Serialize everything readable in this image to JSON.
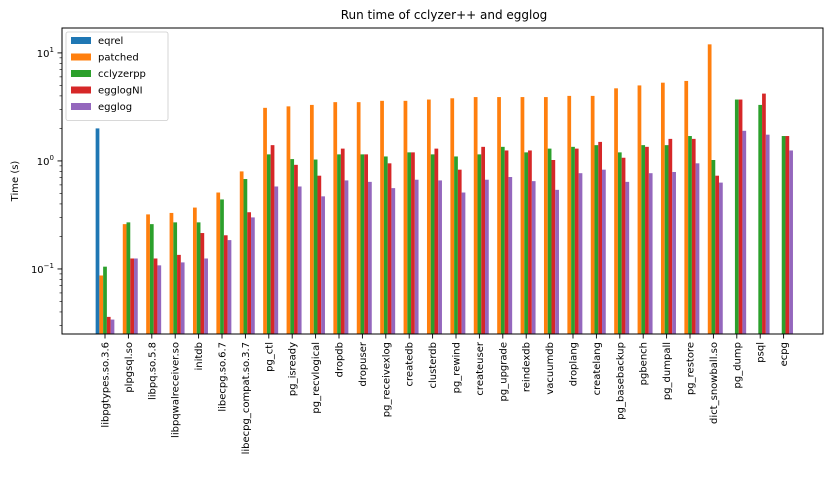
{
  "chart_data": {
    "type": "bar",
    "title": "Run time of cclyzer++ and egglog",
    "xlabel": "",
    "ylabel": "Time (s)",
    "yscale": "log",
    "ylim": [
      0.025,
      17
    ],
    "yticks": [
      {
        "value": 0.1,
        "base": "10",
        "exp": "−1"
      },
      {
        "value": 1,
        "base": "10",
        "exp": "0"
      },
      {
        "value": 10,
        "base": "10",
        "exp": "1"
      }
    ],
    "legend_position": "top-left",
    "categories": [
      "libpgtypes.so.3.6",
      "plpgsql.so",
      "libpq.so.5.8",
      "libpqwalreceiver.so",
      "initdb",
      "libecpg.so.6.7",
      "libecpg_compat.so.3.7",
      "pg_ctl",
      "pg_isready",
      "pg_recvlogical",
      "dropdb",
      "dropuser",
      "pg_receivexlog",
      "createdb",
      "clusterdb",
      "pg_rewind",
      "createuser",
      "pg_upgrade",
      "reindexdb",
      "vacuumdb",
      "droplang",
      "createlang",
      "pg_basebackup",
      "pgbench",
      "pg_dumpall",
      "pg_restore",
      "dict_snowball.so",
      "pg_dump",
      "psql",
      "ecpg"
    ],
    "series": [
      {
        "name": "eqrel",
        "color": "#1f77b4",
        "values": [
          2.0,
          null,
          null,
          null,
          null,
          null,
          null,
          null,
          null,
          null,
          null,
          null,
          null,
          null,
          null,
          null,
          null,
          null,
          null,
          null,
          null,
          null,
          null,
          null,
          null,
          null,
          null,
          null,
          null,
          null
        ]
      },
      {
        "name": "patched",
        "color": "#ff7f0e",
        "values": [
          0.087,
          0.26,
          0.32,
          0.33,
          0.37,
          0.51,
          0.8,
          3.1,
          3.2,
          3.3,
          3.5,
          3.5,
          3.6,
          3.6,
          3.7,
          3.8,
          3.9,
          3.9,
          3.9,
          3.9,
          4.0,
          4.0,
          4.7,
          5.0,
          5.3,
          5.5,
          12.0,
          null,
          null,
          null
        ]
      },
      {
        "name": "cclyzerpp",
        "color": "#2ca02c",
        "values": [
          0.105,
          0.27,
          0.26,
          0.27,
          0.27,
          0.44,
          0.68,
          1.15,
          1.04,
          1.03,
          1.15,
          1.15,
          1.1,
          1.2,
          1.15,
          1.1,
          1.15,
          1.35,
          1.2,
          1.3,
          1.35,
          1.4,
          1.2,
          1.4,
          1.4,
          1.7,
          1.02,
          3.7,
          3.3,
          1.7
        ]
      },
      {
        "name": "egglogNI",
        "color": "#d62728",
        "values": [
          0.036,
          0.125,
          0.125,
          0.135,
          0.215,
          0.205,
          0.335,
          1.4,
          0.92,
          0.73,
          1.3,
          1.15,
          0.95,
          1.2,
          1.3,
          0.83,
          1.35,
          1.25,
          1.25,
          1.02,
          1.3,
          1.5,
          1.07,
          1.35,
          1.6,
          1.6,
          0.73,
          3.7,
          4.2,
          1.7
        ]
      },
      {
        "name": "egglog",
        "color": "#9467bd",
        "values": [
          0.034,
          0.125,
          0.108,
          0.115,
          0.125,
          0.185,
          0.3,
          0.58,
          0.58,
          0.47,
          0.66,
          0.64,
          0.56,
          0.67,
          0.66,
          0.51,
          0.67,
          0.71,
          0.65,
          0.54,
          0.77,
          0.83,
          0.64,
          0.77,
          0.79,
          0.95,
          0.63,
          1.9,
          1.75,
          1.25
        ]
      }
    ]
  }
}
